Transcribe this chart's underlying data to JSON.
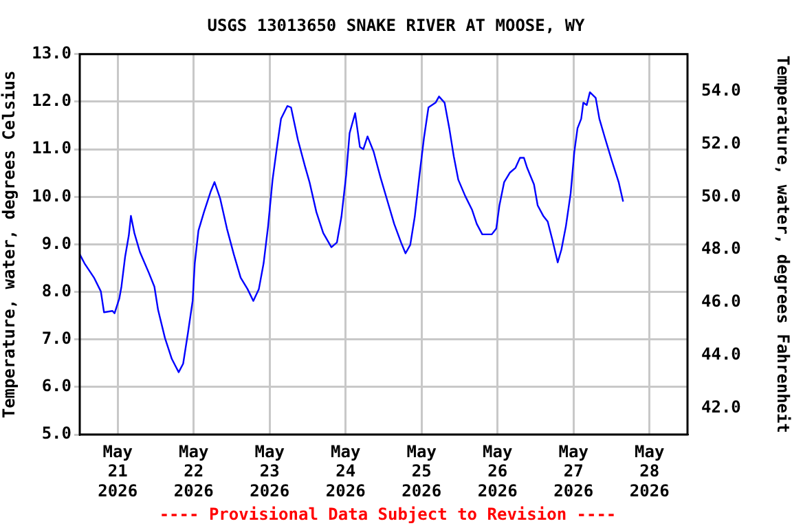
{
  "chart_data": {
    "type": "line",
    "title": "USGS 13013650 SNAKE RIVER AT MOOSE, WY",
    "ylabel": "Temperature, water, degrees Celsius",
    "y2label": "Temperature, water, degrees Fahrenheit",
    "annotations": [
      "---- Provisional Data Subject to Revision ----"
    ],
    "xlim": [
      "2026-05-20T12:00",
      "2026-05-28T12:00"
    ],
    "xticks": [
      {
        "value": "2026-05-21",
        "label": "May 21 2026"
      },
      {
        "value": "2026-05-22",
        "label": "May 22 2026"
      },
      {
        "value": "2026-05-23",
        "label": "May 23 2026"
      },
      {
        "value": "2026-05-24",
        "label": "May 24 2026"
      },
      {
        "value": "2026-05-25",
        "label": "May 25 2026"
      },
      {
        "value": "2026-05-26",
        "label": "May 26 2026"
      },
      {
        "value": "2026-05-27",
        "label": "May 27 2026"
      },
      {
        "value": "2026-05-28",
        "label": "May 28 2026"
      }
    ],
    "ylim": [
      5,
      13
    ],
    "yticks": [
      {
        "value": 5,
        "label": "5.0"
      },
      {
        "value": 6,
        "label": "6.0"
      },
      {
        "value": 7,
        "label": "7.0"
      },
      {
        "value": 8,
        "label": "8.0"
      },
      {
        "value": 9,
        "label": "9.0"
      },
      {
        "value": 10,
        "label": "10.0"
      },
      {
        "value": 11,
        "label": "11.0"
      },
      {
        "value": 12,
        "label": "12.0"
      },
      {
        "value": 13,
        "label": "13.0"
      }
    ],
    "y2lim": [
      41,
      55.4
    ],
    "y2ticks": [
      {
        "value": 42,
        "label": "42.0"
      },
      {
        "value": 44,
        "label": "44.0"
      },
      {
        "value": 46,
        "label": "46.0"
      },
      {
        "value": 48,
        "label": "48.0"
      },
      {
        "value": 50,
        "label": "50.0"
      },
      {
        "value": 52,
        "label": "52.0"
      },
      {
        "value": 54,
        "label": "54.0"
      }
    ],
    "grid": true,
    "legend": false,
    "marker": "none",
    "line_style": "solid",
    "series": [
      {
        "color": "#0000ff",
        "x": [
          "2026-05-20T12:00",
          "2026-05-20T13:30",
          "2026-05-20T16:30",
          "2026-05-20T18:40",
          "2026-05-20T19:40",
          "2026-05-20T22:20",
          "2026-05-20T23:00",
          "2026-05-21T00:30",
          "2026-05-21T01:10",
          "2026-05-21T02:20",
          "2026-05-21T03:30",
          "2026-05-21T04:10",
          "2026-05-21T05:15",
          "2026-05-21T07:00",
          "2026-05-21T09:50",
          "2026-05-21T11:35",
          "2026-05-21T12:45",
          "2026-05-21T14:55",
          "2026-05-21T17:05",
          "2026-05-21T19:15",
          "2026-05-21T20:40",
          "2026-05-21T22:10",
          "2026-05-21T23:40",
          "2026-05-22T00:20",
          "2026-05-22T01:30",
          "2026-05-22T03:15",
          "2026-05-22T05:25",
          "2026-05-22T06:35",
          "2026-05-22T08:20",
          "2026-05-22T10:30",
          "2026-05-22T12:40",
          "2026-05-22T14:50",
          "2026-05-22T17:00",
          "2026-05-22T18:50",
          "2026-05-22T20:35",
          "2026-05-22T22:05",
          "2026-05-22T23:30",
          "2026-05-23T00:55",
          "2026-05-23T02:25",
          "2026-05-23T03:35",
          "2026-05-23T05:35",
          "2026-05-23T06:45",
          "2026-05-23T08:55",
          "2026-05-23T11:05",
          "2026-05-23T12:35",
          "2026-05-23T14:45",
          "2026-05-23T16:55",
          "2026-05-23T19:30",
          "2026-05-23T21:15",
          "2026-05-23T22:40",
          "2026-05-24T00:10",
          "2026-05-24T01:15",
          "2026-05-24T03:00",
          "2026-05-24T04:30",
          "2026-05-24T05:35",
          "2026-05-24T06:55",
          "2026-05-24T08:50",
          "2026-05-24T11:00",
          "2026-05-24T13:10",
          "2026-05-24T15:20",
          "2026-05-24T17:30",
          "2026-05-24T18:55",
          "2026-05-24T20:25",
          "2026-05-24T21:50",
          "2026-05-24T23:20",
          "2026-05-25T00:45",
          "2026-05-25T02:10",
          "2026-05-25T04:25",
          "2026-05-25T05:30",
          "2026-05-25T07:15",
          "2026-05-25T08:45",
          "2026-05-25T10:10",
          "2026-05-25T11:35",
          "2026-05-25T13:45",
          "2026-05-25T15:55",
          "2026-05-25T17:25",
          "2026-05-25T19:10",
          "2026-05-25T22:10",
          "2026-05-25T23:35",
          "2026-05-26T00:35",
          "2026-05-26T02:05",
          "2026-05-26T03:55",
          "2026-05-26T05:40",
          "2026-05-26T07:05",
          "2026-05-26T08:20",
          "2026-05-26T09:20",
          "2026-05-26T11:30",
          "2026-05-26T12:40",
          "2026-05-26T14:25",
          "2026-05-26T15:50",
          "2026-05-26T17:20",
          "2026-05-26T19:00",
          "2026-05-26T20:10",
          "2026-05-26T21:35",
          "2026-05-26T23:05",
          "2026-05-27T00:15",
          "2026-05-27T01:15",
          "2026-05-27T02:25",
          "2026-05-27T03:05",
          "2026-05-27T04:10",
          "2026-05-27T05:10",
          "2026-05-27T07:00",
          "2026-05-27T08:10",
          "2026-05-27T09:55",
          "2026-05-27T12:05",
          "2026-05-27T14:15",
          "2026-05-27T15:40"
        ],
        "values": [
          8.79,
          8.6,
          8.3,
          8.01,
          7.57,
          7.6,
          7.55,
          7.86,
          8.11,
          8.74,
          9.19,
          9.6,
          9.24,
          8.84,
          8.4,
          8.11,
          7.62,
          7.03,
          6.59,
          6.31,
          6.49,
          7.13,
          7.81,
          8.6,
          9.29,
          9.68,
          10.12,
          10.31,
          9.97,
          9.33,
          8.79,
          8.3,
          8.06,
          7.81,
          8.06,
          8.6,
          9.38,
          10.36,
          11.1,
          11.64,
          11.91,
          11.88,
          11.2,
          10.66,
          10.31,
          9.68,
          9.24,
          8.94,
          9.04,
          9.58,
          10.46,
          11.34,
          11.76,
          11.05,
          11.0,
          11.27,
          10.95,
          10.41,
          9.92,
          9.43,
          9.04,
          8.81,
          8.99,
          9.58,
          10.46,
          11.24,
          11.88,
          11.98,
          12.11,
          11.98,
          11.44,
          10.85,
          10.36,
          10.02,
          9.73,
          9.43,
          9.21,
          9.21,
          9.33,
          9.82,
          10.31,
          10.51,
          10.61,
          10.82,
          10.82,
          10.61,
          10.26,
          9.82,
          9.6,
          9.48,
          9.09,
          8.62,
          8.89,
          9.38,
          10.07,
          10.95,
          11.44,
          11.64,
          11.98,
          11.93,
          12.2,
          12.08,
          11.64,
          11.24,
          10.76,
          10.31,
          9.9
        ]
      }
    ]
  }
}
